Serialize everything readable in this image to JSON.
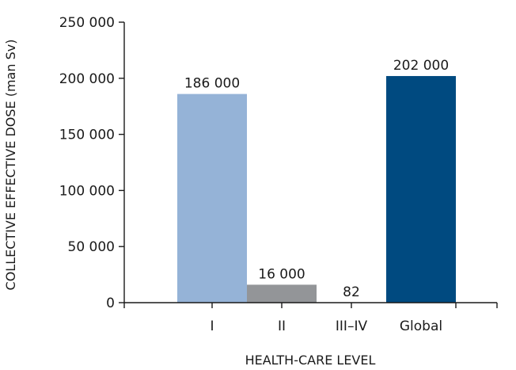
{
  "chart_data": {
    "type": "bar",
    "categories": [
      "I",
      "II",
      "III–IV",
      "Global"
    ],
    "values": [
      186000,
      16000,
      82,
      202000
    ],
    "data_labels": [
      "186 000",
      "16 000",
      "82",
      "202 000"
    ],
    "colors": [
      "#95b3d7",
      "#939598",
      "#939598",
      "#004a80"
    ],
    "title": "",
    "xlabel": "HEALTH-CARE LEVEL",
    "ylabel": "COLLECTIVE EFFECTIVE DOSE (man Sv)",
    "ylim": [
      0,
      250000
    ],
    "yticks": [
      0,
      50000,
      100000,
      150000,
      200000,
      250000
    ],
    "ytick_labels": [
      "0",
      "50 000",
      "100 000",
      "150 000",
      "200 000",
      "250 000"
    ],
    "grid": false,
    "legend": "none"
  }
}
